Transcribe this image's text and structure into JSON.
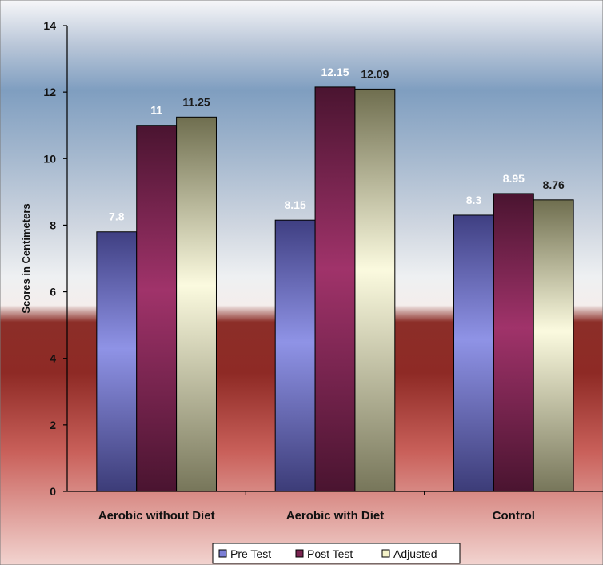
{
  "chart_data": {
    "type": "bar",
    "title": "",
    "xlabel": "",
    "ylabel": "Scores in Centimeters",
    "ylim": [
      0,
      14
    ],
    "yticks": [
      "0",
      "2",
      "4",
      "6",
      "8",
      "10",
      "12",
      "14"
    ],
    "grid": false,
    "legend_position": "bottom",
    "categories": [
      "Aerobic without Diet",
      "Aerobic with Diet",
      "Control"
    ],
    "series": [
      {
        "name": "Pre Test",
        "values": [
          7.8,
          8.15,
          8.3
        ],
        "labels": [
          "7.8",
          "8.15",
          "8.3"
        ],
        "color": "#7c7fd6",
        "label_color": "#ffffff"
      },
      {
        "name": "Post Test",
        "values": [
          11,
          12.15,
          8.95
        ],
        "labels": [
          "11",
          "12.15",
          "8.95"
        ],
        "color": "#7a2450",
        "label_color": "#ffffff"
      },
      {
        "name": "Adjusted",
        "values": [
          11.25,
          12.09,
          8.76
        ],
        "labels": [
          "11.25",
          "12.09",
          "8.76"
        ],
        "color": "#e6e4b8",
        "label_color": "#1a1a1a"
      }
    ]
  }
}
